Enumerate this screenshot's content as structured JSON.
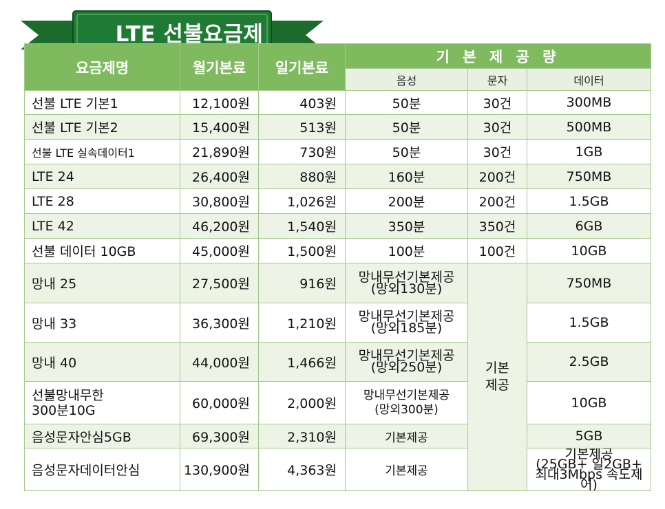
{
  "banner": {
    "title": "LTE 선불요금제"
  },
  "colors": {
    "accent": "#7fba5f",
    "banner_green": "#1f7a33",
    "alt_row": "#edf4e6"
  },
  "header": {
    "plan_name": "요금제명",
    "monthly_fee": "월기본료",
    "daily_fee": "일기본료",
    "base_provision": "기 본 제 공 량",
    "voice": "음성",
    "sms": "문자",
    "data": "데이터"
  },
  "rows": [
    {
      "name": "선불 LTE 기본1",
      "monthly": "12,100원",
      "daily": "403원",
      "voice": "50분",
      "sms": "30건",
      "data": "300MB"
    },
    {
      "name": "선불 LTE 기본2",
      "monthly": "15,400원",
      "daily": "513원",
      "voice": "50분",
      "sms": "30건",
      "data": "500MB"
    },
    {
      "name": "선불 LTE 실속데이터1",
      "monthly": "21,890원",
      "daily": "730원",
      "voice": "50분",
      "sms": "30건",
      "data": "1GB"
    },
    {
      "name": "LTE 24",
      "monthly": "26,400원",
      "daily": "880원",
      "voice": "160분",
      "sms": "200건",
      "data": "750MB"
    },
    {
      "name": "LTE 28",
      "monthly": "30,800원",
      "daily": "1,026원",
      "voice": "200분",
      "sms": "200건",
      "data": "1.5GB"
    },
    {
      "name": "LTE 42",
      "monthly": "46,200원",
      "daily": "1,540원",
      "voice": "350분",
      "sms": "350건",
      "data": "6GB"
    },
    {
      "name": "선불 데이터 10GB",
      "monthly": "45,000원",
      "daily": "1,500원",
      "voice": "100분",
      "sms": "100건",
      "data": "10GB"
    },
    {
      "name": "망내 25",
      "monthly": "27,500원",
      "daily": "916원",
      "voice_l1": "망내무선기본제공",
      "voice_l2": "(망외130분)",
      "data": "750MB"
    },
    {
      "name": "망내 33",
      "monthly": "36,300원",
      "daily": "1,210원",
      "voice_l1": "망내무선기본제공",
      "voice_l2": "(망외185분)",
      "data": "1.5GB"
    },
    {
      "name": "망내 40",
      "monthly": "44,000원",
      "daily": "1,466원",
      "voice_l1": "망내무선기본제공",
      "voice_l2": "(망외250분)",
      "data": "2.5GB"
    },
    {
      "name_l1": "선불망내무한",
      "name_l2": "300분10G",
      "monthly": "60,000원",
      "daily": "2,000원",
      "voice_l1": "망내무선기본제공",
      "voice_l2": "(망외300분)",
      "data": "10GB"
    },
    {
      "name": "음성문자안심5GB",
      "monthly": "69,300원",
      "daily": "2,310원",
      "voice": "기본제공",
      "data": "5GB"
    },
    {
      "name": "음성문자데이터안심",
      "monthly": "130,900원",
      "daily": "4,363원",
      "voice": "기본제공",
      "data_l1": "기본제공",
      "data_l2": "(25GB+ 일2GB+",
      "data_l3": "최대3Mbps 속도제어)"
    }
  ],
  "merged_sms": {
    "l1": "기본",
    "l2": "제공"
  }
}
